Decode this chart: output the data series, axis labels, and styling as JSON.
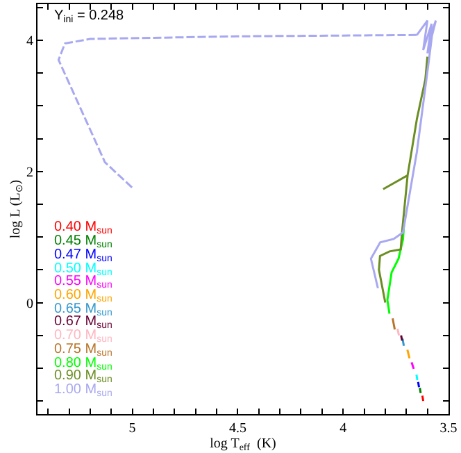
{
  "chart_data": {
    "type": "line",
    "xlabel": "log T$_{eff}$  (K)",
    "ylabel": "log L (L$_{⊙}$)",
    "annotations": [
      "Y$_{ini}$ = 0.248"
    ],
    "xlim": [
      5.45,
      3.5
    ],
    "ylim": [
      -1.7,
      4.55
    ],
    "xticks": [
      {
        "value": 5.4,
        "label": null
      },
      {
        "value": 5.3,
        "label": null
      },
      {
        "value": 5.2,
        "label": null
      },
      {
        "value": 5.1,
        "label": null
      },
      5,
      {
        "value": 4.9,
        "label": null
      },
      {
        "value": 4.8,
        "label": null
      },
      {
        "value": 4.7,
        "label": null
      },
      {
        "value": 4.6,
        "label": null
      },
      4.5,
      {
        "value": 4.4,
        "label": null
      },
      {
        "value": 4.3,
        "label": null
      },
      {
        "value": 4.2,
        "label": null
      },
      {
        "value": 4.1,
        "label": null
      },
      4,
      {
        "value": 3.9,
        "label": null
      },
      {
        "value": 3.8,
        "label": null
      },
      {
        "value": 3.7,
        "label": null
      },
      {
        "value": 3.6,
        "label": null
      },
      3.5
    ],
    "yticks": [
      {
        "value": -1.5,
        "label": null
      },
      {
        "value": -1,
        "label": null
      },
      {
        "value": -0.5,
        "label": null
      },
      0,
      {
        "value": 0.5,
        "label": null
      },
      {
        "value": 1,
        "label": null
      },
      {
        "value": 1.5,
        "label": null
      },
      2,
      {
        "value": 2.5,
        "label": null
      },
      {
        "value": 3,
        "label": null
      },
      {
        "value": 3.5,
        "label": null
      },
      4,
      {
        "value": 4.5,
        "label": null
      }
    ],
    "legend": "bottom left",
    "marker": "none",
    "line_style": "solid",
    "series": [
      {
        "name": "0.40 M$_{sun}$",
        "color": "#ff0000",
        "x": [
          3.624,
          3.62
        ],
        "values": [
          -1.42,
          -1.5
        ]
      },
      {
        "name": "0.45 M$_{sun}$",
        "color": "#008000",
        "x": [
          3.636,
          3.632
        ],
        "values": [
          -1.3,
          -1.38
        ]
      },
      {
        "name": "0.47 M$_{sun}$",
        "color": "#0000ff",
        "x": [
          3.644,
          3.64
        ],
        "values": [
          -1.21,
          -1.29
        ]
      },
      {
        "name": "0.50 M$_{sun}$",
        "color": "#00ffff",
        "x": [
          3.652,
          3.648
        ],
        "values": [
          -1.1,
          -1.18
        ]
      },
      {
        "name": "0.55 M$_{sun}$",
        "color": "#ff00ff",
        "x": [
          3.675,
          3.665
        ],
        "values": [
          -0.91,
          -1.01
        ]
      },
      {
        "name": "0.60 M$_{sun}$",
        "color": "#ffa500",
        "x": [
          3.695,
          3.685
        ],
        "values": [
          -0.72,
          -0.85
        ]
      },
      {
        "name": "0.65 M$_{sun}$",
        "color": "#3399cc",
        "x": [
          3.718,
          3.712
        ],
        "values": [
          -0.55,
          -0.66
        ]
      },
      {
        "name": "0.67 M$_{sun}$",
        "color": "#660033",
        "x": [
          3.725,
          3.72
        ],
        "values": [
          -0.5,
          -0.58
        ]
      },
      {
        "name": "0.70 M$_{sun}$",
        "color": "#ffb6c1",
        "x": [
          3.742,
          3.735
        ],
        "values": [
          -0.4,
          -0.5
        ]
      },
      {
        "name": "0.75 M$_{sun}$",
        "color": "#b8752a",
        "x": [
          3.765,
          3.755
        ],
        "values": [
          -0.24,
          -0.41
        ]
      },
      {
        "name": "0.80 M$_{sun}$",
        "color": "#00ff00",
        "x": [
          3.78,
          3.79,
          3.77,
          3.737,
          3.716,
          3.71
        ],
        "values": [
          -0.17,
          0.04,
          0.46,
          0.67,
          0.96,
          1.24
        ]
      },
      {
        "name": "0.90 M$_{sun}$",
        "color": "#6b8e23",
        "x": [
          3.8,
          3.83,
          3.825,
          3.78,
          3.727,
          3.72,
          3.694,
          3.81,
          3.694,
          3.65,
          3.61,
          3.6
        ],
        "values": [
          0.0,
          0.5,
          0.71,
          0.78,
          0.81,
          1.09,
          1.94,
          1.73,
          1.94,
          2.8,
          3.4,
          3.75
        ]
      },
      {
        "name": "1.00 M$_{sun}$",
        "color": "#a8a8f0",
        "x": [
          3.835,
          3.868,
          3.824,
          3.76,
          3.716,
          3.65,
          3.596,
          3.574,
          3.56,
          3.6,
          3.58,
          3.62,
          3.6,
          3.65
        ],
        "values": [
          0.22,
          0.67,
          0.92,
          0.97,
          1.07,
          2.3,
          3.62,
          4.18,
          4.3,
          3.8,
          4.25,
          3.85,
          4.3,
          4.08
        ]
      },
      {
        "color": "#a8a8f0",
        "line_style": "dashed",
        "x": [
          3.65,
          4.5,
          5.2,
          5.32,
          5.35,
          5.13,
          5.0
        ],
        "values": [
          4.08,
          4.06,
          4.02,
          3.95,
          3.7,
          2.14,
          1.75
        ]
      }
    ]
  }
}
